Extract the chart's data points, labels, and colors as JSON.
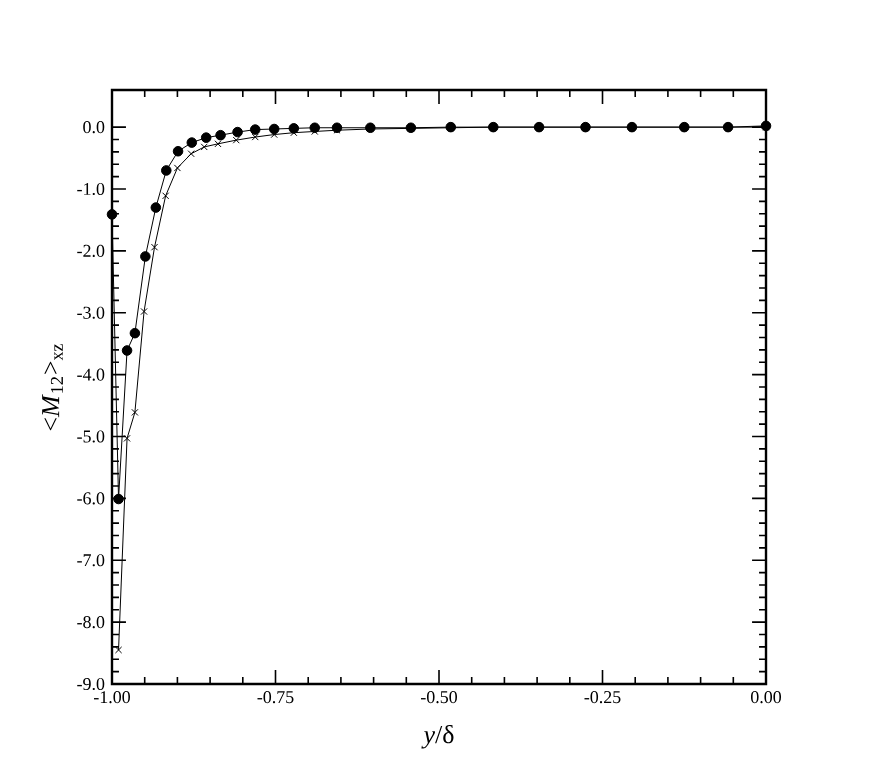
{
  "chart_data": {
    "type": "line",
    "xlabel": "*y*/δ",
    "ylabel": "<*M*$_{12}$>$_{xz}$",
    "xlim": [
      -1,
      0
    ],
    "ylim": [
      -9,
      0.6
    ],
    "xticks": [
      {
        "value": -1,
        "label": "-1.00"
      },
      {
        "value": -0.75,
        "label": "-0.75"
      },
      {
        "value": -0.5,
        "label": "-0.50"
      },
      {
        "value": -0.25,
        "label": "-0.25"
      },
      {
        "value": 0,
        "label": "0.00"
      }
    ],
    "yticks": [
      {
        "value": 0,
        "label": "0.0"
      },
      {
        "value": -1,
        "label": "-1.0"
      },
      {
        "value": -2,
        "label": "-2.0"
      },
      {
        "value": -3,
        "label": "-3.0"
      },
      {
        "value": -4,
        "label": "-4.0"
      },
      {
        "value": -5,
        "label": "-5.0"
      },
      {
        "value": -6,
        "label": "-6.0"
      },
      {
        "value": -7,
        "label": "-7.0"
      },
      {
        "value": -8,
        "label": "-8.0"
      },
      {
        "value": -9,
        "label": "-9.0"
      }
    ],
    "series": [
      {
        "color": "#000000",
        "marker": "circle",
        "x": [
          -1.0,
          -0.99,
          -0.977,
          -0.965,
          -0.949,
          -0.933,
          -0.917,
          -0.899,
          -0.878,
          -0.856,
          -0.834,
          -0.808,
          -0.781,
          -0.752,
          -0.722,
          -0.69,
          -0.656,
          -0.605,
          -0.543,
          -0.482,
          -0.417,
          -0.347,
          -0.276,
          -0.205,
          -0.125,
          -0.058,
          0.0
        ],
        "values": [
          -1.41,
          -6.01,
          -3.61,
          -3.33,
          -2.09,
          -1.3,
          -0.7,
          -0.39,
          -0.25,
          -0.17,
          -0.13,
          -0.08,
          -0.04,
          -0.03,
          -0.02,
          -0.01,
          -0.01,
          -0.01,
          -0.01,
          0,
          0,
          0,
          0,
          0,
          0,
          0,
          0.02
        ]
      },
      {
        "color": "#000000",
        "marker": "cross",
        "x": [
          -0.99,
          -0.977,
          -0.965,
          -0.951,
          -0.935,
          -0.918,
          -0.9,
          -0.879,
          -0.859,
          -0.838,
          -0.81,
          -0.781,
          -0.752,
          -0.722,
          -0.69,
          -0.656,
          -0.605,
          -0.543,
          -0.482,
          -0.417,
          -0.347,
          -0.276,
          -0.205,
          -0.125,
          -0.058,
          0.0
        ],
        "values": [
          -8.45,
          -5.03,
          -4.61,
          -2.98,
          -1.94,
          -1.11,
          -0.66,
          -0.43,
          -0.32,
          -0.27,
          -0.21,
          -0.16,
          -0.12,
          -0.09,
          -0.07,
          -0.05,
          -0.03,
          -0.02,
          -0.01,
          0,
          0,
          0,
          0,
          0,
          0,
          0
        ]
      }
    ]
  }
}
